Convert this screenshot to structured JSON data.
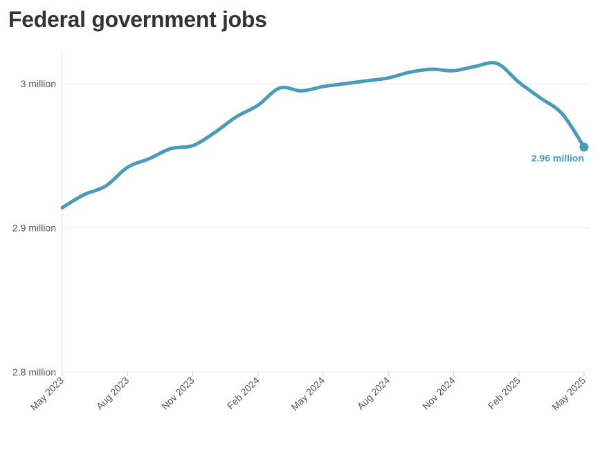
{
  "chart_data": {
    "type": "line",
    "title": "Federal government jobs",
    "xlabel": "",
    "ylabel": "",
    "ylim": [
      2800000,
      3025000
    ],
    "yticks": [
      {
        "value": 2800000,
        "label": "2.8 million"
      },
      {
        "value": 2900000,
        "label": "2.9 million"
      },
      {
        "value": 3000000,
        "label": "3 million"
      }
    ],
    "xticks": [
      {
        "index": 0,
        "label": "May 2023"
      },
      {
        "index": 3,
        "label": "Aug 2023"
      },
      {
        "index": 6,
        "label": "Nov 2023"
      },
      {
        "index": 9,
        "label": "Feb 2024"
      },
      {
        "index": 12,
        "label": "May 2024"
      },
      {
        "index": 15,
        "label": "Aug 2024"
      },
      {
        "index": 18,
        "label": "Nov 2024"
      },
      {
        "index": 21,
        "label": "Feb 2025"
      },
      {
        "index": 24,
        "label": "May 2025"
      }
    ],
    "series": [
      {
        "name": "Federal government jobs",
        "color": "#4a9bb7",
        "x": [
          "May 2023",
          "Jun 2023",
          "Jul 2023",
          "Aug 2023",
          "Sep 2023",
          "Oct 2023",
          "Nov 2023",
          "Dec 2023",
          "Jan 2024",
          "Feb 2024",
          "Mar 2024",
          "Apr 2024",
          "May 2024",
          "Jun 2024",
          "Jul 2024",
          "Aug 2024",
          "Sep 2024",
          "Oct 2024",
          "Nov 2024",
          "Dec 2024",
          "Jan 2025",
          "Feb 2025",
          "Mar 2025",
          "Apr 2025",
          "May 2025"
        ],
        "values": [
          2914000,
          2923000,
          2929000,
          2942000,
          2948000,
          2955000,
          2957000,
          2966000,
          2977000,
          2985000,
          2997000,
          2995000,
          2998000,
          3000000,
          3002000,
          3004000,
          3008000,
          3010000,
          3009000,
          3012000,
          3014000,
          3001000,
          2990000,
          2979000,
          2956000
        ]
      }
    ],
    "end_label": "2.96 million"
  }
}
